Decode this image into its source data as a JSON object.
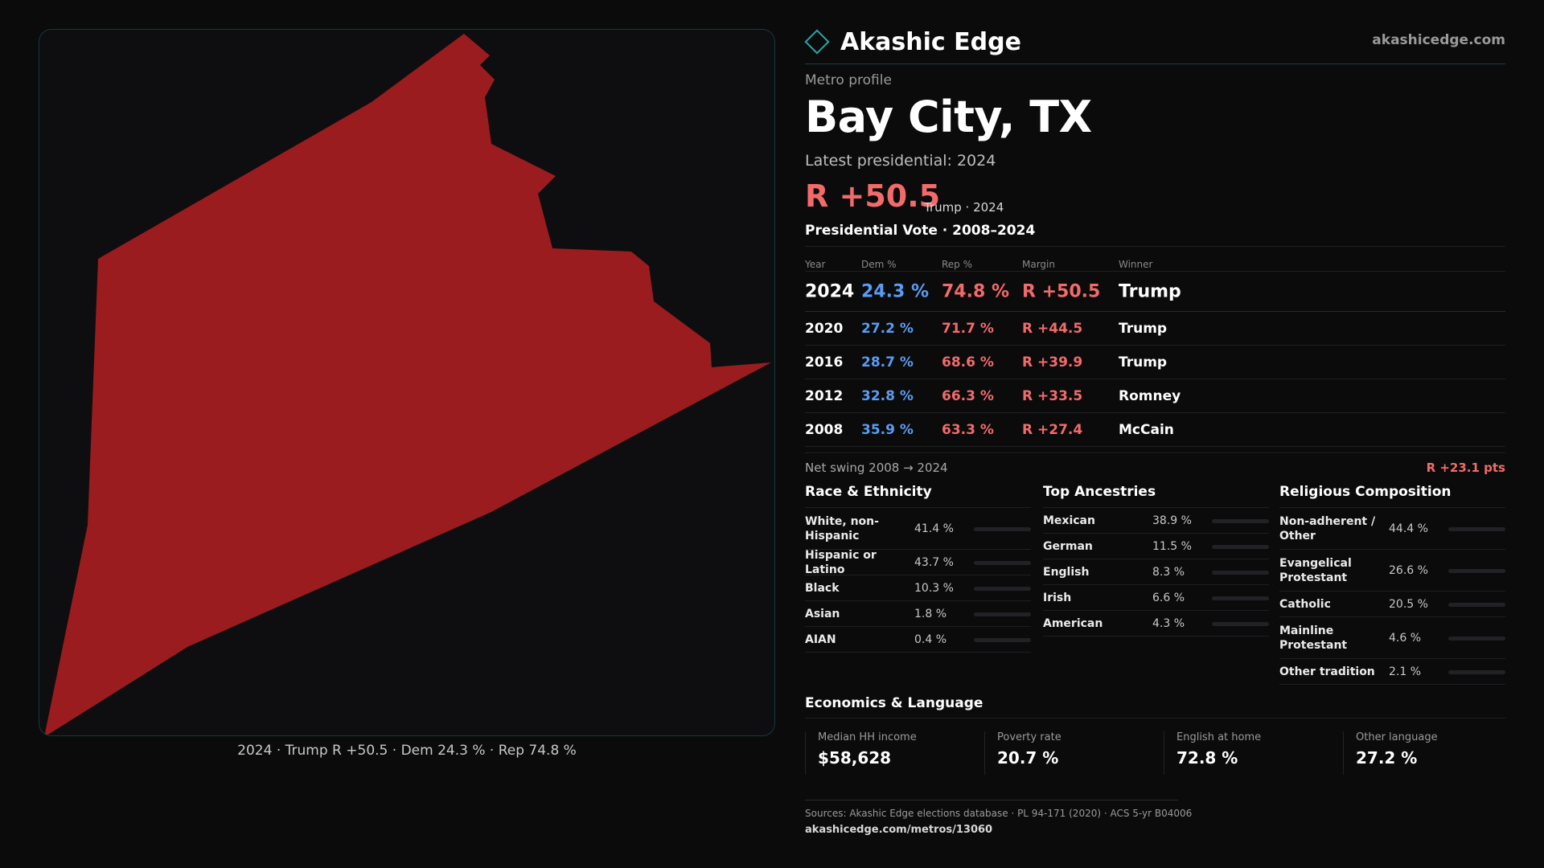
{
  "brand": {
    "name": "Akashic Edge",
    "url": "akashicedge.com"
  },
  "header": {
    "kicker": "Metro profile",
    "title": "Bay City, TX",
    "latest": "Latest presidential: 2024",
    "margin": "R +50.5",
    "margin_sub": "Trump · 2024"
  },
  "map": {
    "caption": "2024 · Trump R +50.5 · Dem 24.3 % · Rep 74.8 %",
    "fill_color": "#9b1c1f"
  },
  "vote": {
    "title": "Presidential Vote · 2008–2024",
    "headers": {
      "year": "Year",
      "dem": "Dem %",
      "rep": "Rep %",
      "margin": "Margin",
      "winner": "Winner"
    },
    "rows": [
      {
        "year": "2024",
        "dem": "24.3 %",
        "rep": "74.8 %",
        "margin": "R +50.5",
        "winner": "Trump"
      },
      {
        "year": "2020",
        "dem": "27.2 %",
        "rep": "71.7 %",
        "margin": "R +44.5",
        "winner": "Trump"
      },
      {
        "year": "2016",
        "dem": "28.7 %",
        "rep": "68.6 %",
        "margin": "R +39.9",
        "winner": "Trump"
      },
      {
        "year": "2012",
        "dem": "32.8 %",
        "rep": "66.3 %",
        "margin": "R +33.5",
        "winner": "Romney"
      },
      {
        "year": "2008",
        "dem": "35.9 %",
        "rep": "63.3 %",
        "margin": "R +27.4",
        "winner": "McCain"
      }
    ],
    "swing_label": "Net swing 2008 → 2024",
    "swing_value": "R +23.1 pts"
  },
  "race": {
    "title": "Race & Ethnicity",
    "items": [
      {
        "label": "White, non-Hispanic",
        "pct": "41.4 %",
        "value": 41.4,
        "color": "#8a93a6"
      },
      {
        "label": "Hispanic or Latino",
        "pct": "43.7 %",
        "value": 43.7,
        "color": "#e0a030"
      },
      {
        "label": "Black",
        "pct": "10.3 %",
        "value": 10.3,
        "color": "#8f7cf0"
      },
      {
        "label": "Asian",
        "pct": "1.8 %",
        "value": 1.8,
        "color": "#3fb07a"
      },
      {
        "label": "AIAN",
        "pct": "0.4 %",
        "value": 0.4,
        "color": "#8a8a8a"
      }
    ]
  },
  "ancestry": {
    "title": "Top Ancestries",
    "items": [
      {
        "label": "Mexican",
        "pct": "38.9 %",
        "value": 38.9,
        "color": "#e0a030"
      },
      {
        "label": "German",
        "pct": "11.5 %",
        "value": 11.5,
        "color": "#8a93a6"
      },
      {
        "label": "English",
        "pct": "8.3 %",
        "value": 8.3,
        "color": "#8a93a6"
      },
      {
        "label": "Irish",
        "pct": "6.6 %",
        "value": 6.6,
        "color": "#8a93a6"
      },
      {
        "label": "American",
        "pct": "4.3 %",
        "value": 4.3,
        "color": "#8a93a6"
      }
    ]
  },
  "religion": {
    "title": "Religious Composition",
    "items": [
      {
        "label": "Non-adherent / Other",
        "pct": "44.4 %",
        "value": 44.4,
        "color": "#6f7888"
      },
      {
        "label": "Evangelical Protestant",
        "pct": "26.6 %",
        "value": 26.6,
        "color": "#f26b6b"
      },
      {
        "label": "Catholic",
        "pct": "20.5 %",
        "value": 20.5,
        "color": "#e0a030"
      },
      {
        "label": "Mainline Protestant",
        "pct": "4.6 %",
        "value": 4.6,
        "color": "#5b9cf2"
      },
      {
        "label": "Other tradition",
        "pct": "2.1 %",
        "value": 2.1,
        "color": "#8a8a8a"
      }
    ]
  },
  "econ": {
    "title": "Economics & Language",
    "cards": [
      {
        "label": "Median HH income",
        "value": "$58,628"
      },
      {
        "label": "Poverty rate",
        "value": "20.7 %"
      },
      {
        "label": "English at home",
        "value": "72.8 %"
      },
      {
        "label": "Other language",
        "value": "27.2 %"
      }
    ]
  },
  "footer": {
    "sources": "Sources: Akashic Edge elections database · PL 94-171 (2020) · ACS 5-yr B04006",
    "url": "akashicedge.com/metros/13060"
  }
}
